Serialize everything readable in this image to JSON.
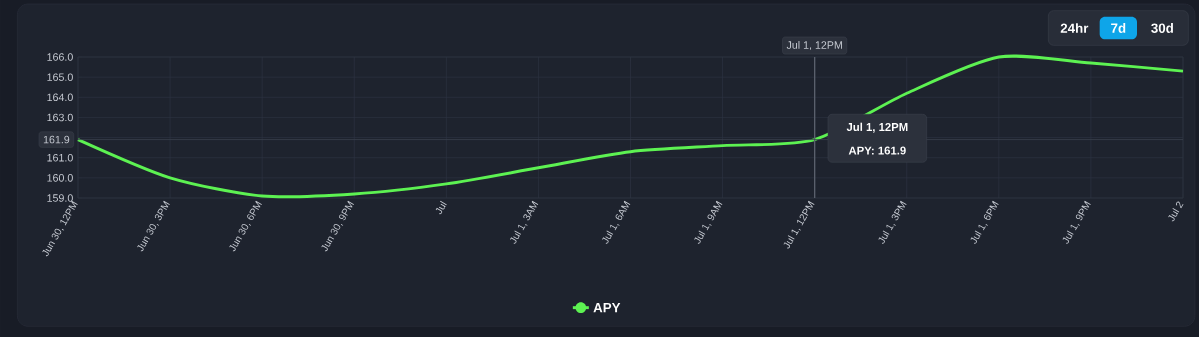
{
  "chart_data": {
    "type": "line",
    "categories": [
      "Jun 30, 12PM",
      "Jun 30, 3PM",
      "Jun 30, 6PM",
      "Jun 30, 9PM",
      "Jul",
      "Jul 1, 3AM",
      "Jul 1, 6AM",
      "Jul 1, 9AM",
      "Jul 1, 12PM",
      "Jul 1, 3PM",
      "Jul 1, 6PM",
      "Jul 1, 9PM",
      "Jul 2"
    ],
    "series": [
      {
        "name": "APY",
        "color": "#5df252",
        "values": [
          161.9,
          160.0,
          159.1,
          159.2,
          159.7,
          160.5,
          161.3,
          161.6,
          161.9,
          164.2,
          166.0,
          165.7,
          165.3
        ]
      }
    ],
    "ylim": [
      159,
      166
    ],
    "yticks": [
      {
        "value": 159,
        "label": "159.0"
      },
      {
        "value": 160,
        "label": "160.0"
      },
      {
        "value": 161,
        "label": "161.0"
      },
      {
        "value": 162,
        "label": null
      },
      {
        "value": 163,
        "label": "163.0"
      },
      {
        "value": 164,
        "label": "164.0"
      },
      {
        "value": 165,
        "label": "165.0"
      },
      {
        "value": 166,
        "label": "166.0"
      }
    ],
    "ref_lines": [
      {
        "axis": "x",
        "value": "Jul 1, 12PM",
        "label": "Jul 1, 12PM",
        "color": "#5a606c"
      },
      {
        "axis": "y",
        "value": 161.9,
        "label": "161.9",
        "color": "#3a404c"
      }
    ],
    "annotations": [
      "24hr",
      "7d",
      "30d",
      {
        "text": "Jul 1, 12PM",
        "x": "Jul 1, 12PM",
        "y": 161.9
      },
      "APY: 161.9"
    ],
    "grid": true,
    "legend": "bottom"
  }
}
